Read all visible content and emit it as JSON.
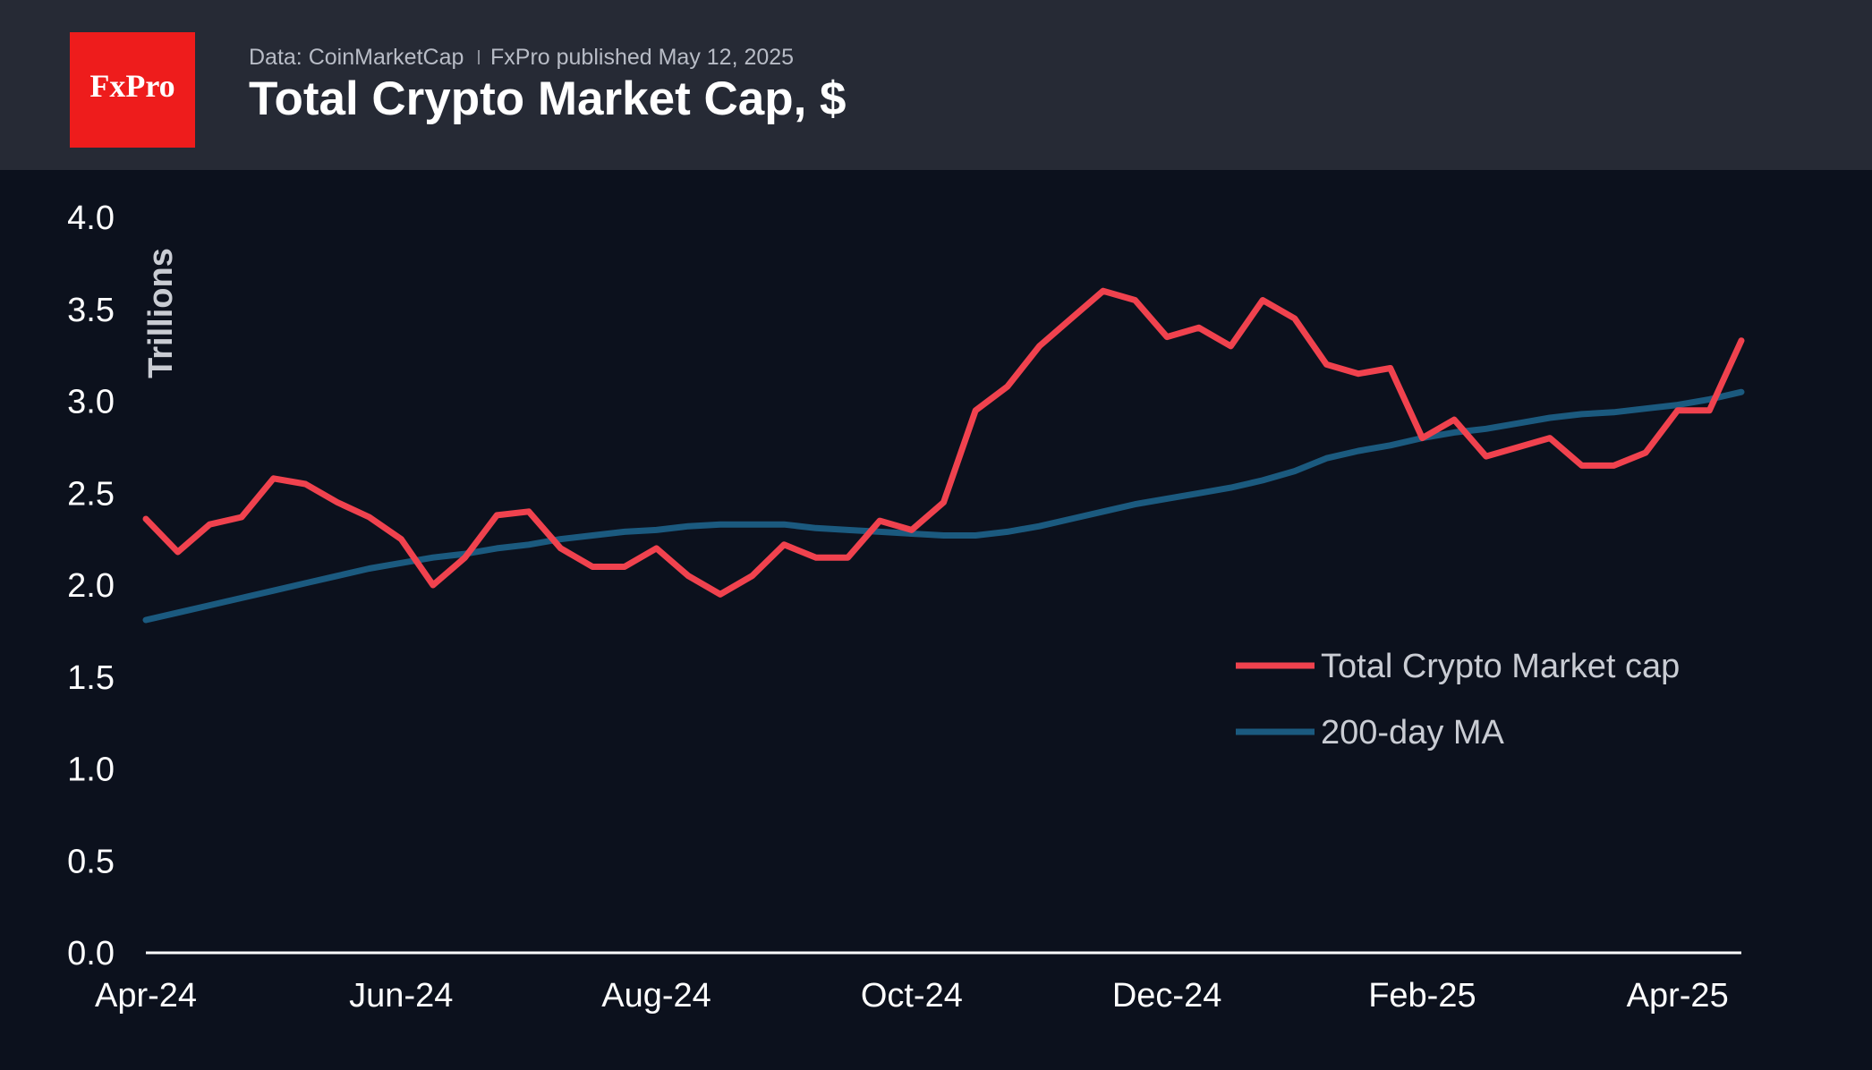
{
  "header": {
    "logo": "FxPro",
    "source": "Data: CoinMarketCap",
    "published": "FxPro published May 12, 2025"
  },
  "chart_data": {
    "type": "line",
    "title": "Total Crypto Market Cap, $",
    "y_label": "Trillions",
    "x": [
      0,
      0.25,
      0.5,
      0.75,
      1,
      1.25,
      1.5,
      1.75,
      2,
      2.25,
      2.5,
      2.75,
      3,
      3.25,
      3.5,
      3.75,
      4,
      4.25,
      4.5,
      4.75,
      5,
      5.25,
      5.5,
      5.75,
      6,
      6.25,
      6.5,
      6.75,
      7,
      7.25,
      7.5,
      7.75,
      8,
      8.25,
      8.5,
      8.75,
      9,
      9.25,
      9.5,
      9.75,
      10,
      10.25,
      10.5,
      10.75,
      11,
      11.25,
      11.5,
      11.75,
      12,
      12.25,
      12.5
    ],
    "series": [
      {
        "name": "Total Crypto Market cap",
        "color": "#f0424e",
        "values": [
          2.36,
          2.18,
          2.33,
          2.37,
          2.58,
          2.55,
          2.45,
          2.37,
          2.25,
          2.0,
          2.15,
          2.38,
          2.4,
          2.2,
          2.1,
          2.1,
          2.2,
          2.05,
          1.95,
          2.05,
          2.22,
          2.15,
          2.15,
          2.35,
          2.3,
          2.45,
          2.95,
          3.08,
          3.3,
          3.45,
          3.6,
          3.55,
          3.35,
          3.4,
          3.3,
          3.55,
          3.45,
          3.2,
          3.15,
          3.18,
          2.8,
          2.9,
          2.7,
          2.75,
          2.8,
          2.65,
          2.65,
          2.72,
          2.95,
          2.95,
          3.33
        ]
      },
      {
        "name": "200-day MA",
        "color": "#1b5a7f",
        "values": [
          1.81,
          1.85,
          1.89,
          1.93,
          1.97,
          2.01,
          2.05,
          2.09,
          2.12,
          2.15,
          2.17,
          2.2,
          2.22,
          2.25,
          2.27,
          2.29,
          2.3,
          2.32,
          2.33,
          2.33,
          2.33,
          2.31,
          2.3,
          2.29,
          2.28,
          2.27,
          2.27,
          2.29,
          2.32,
          2.36,
          2.4,
          2.44,
          2.47,
          2.5,
          2.53,
          2.57,
          2.62,
          2.69,
          2.73,
          2.76,
          2.8,
          2.83,
          2.85,
          2.88,
          2.91,
          2.93,
          2.94,
          2.96,
          2.98,
          3.01,
          3.05
        ]
      }
    ],
    "xlim": [
      0,
      12.5
    ],
    "xticks": [
      {
        "value": 0,
        "label": "Apr-24"
      },
      {
        "value": 2,
        "label": "Jun-24"
      },
      {
        "value": 4,
        "label": "Aug-24"
      },
      {
        "value": 6,
        "label": "Oct-24"
      },
      {
        "value": 8,
        "label": "Dec-24"
      },
      {
        "value": 10,
        "label": "Feb-25"
      },
      {
        "value": 12,
        "label": "Apr-25"
      }
    ],
    "ylim": [
      0,
      4
    ],
    "yticks": [
      {
        "value": 0,
        "label": "0.0"
      },
      0.5,
      {
        "value": 1,
        "label": "1.0"
      },
      1.5,
      {
        "value": 2,
        "label": "2.0"
      },
      2.5,
      {
        "value": 3,
        "label": "3.0"
      },
      3.5,
      {
        "value": 4,
        "label": "4.0"
      }
    ],
    "legend": "center-right"
  }
}
